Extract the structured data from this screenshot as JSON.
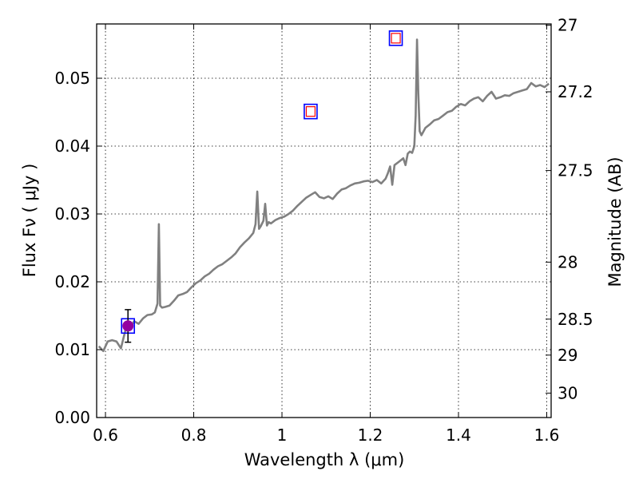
{
  "chart_data": {
    "type": "line",
    "xlabel": "Wavelength  λ (μm)",
    "ylabel": "Flux  Fν  ( μJy )",
    "y2label": "Magnitude (AB)",
    "xlim": [
      0.58,
      1.61
    ],
    "ylim": [
      0.0,
      0.058
    ],
    "grid": true,
    "x_ticks": [
      0.6,
      0.8,
      1.0,
      1.2,
      1.4,
      1.6
    ],
    "x_tick_labels": [
      "0.6",
      "0.8",
      "1",
      "1.2",
      "1.4",
      "1.6"
    ],
    "y_ticks": [
      0.0,
      0.01,
      0.02,
      0.03,
      0.04,
      0.05
    ],
    "y_tick_labels": [
      "0.00",
      "0.01",
      "0.02",
      "0.03",
      "0.04",
      "0.05"
    ],
    "y2_ticks": [
      {
        "label": "27",
        "flux": 0.0578
      },
      {
        "label": "27.2",
        "flux": 0.048
      },
      {
        "label": "27.5",
        "flux": 0.0364
      },
      {
        "label": "28",
        "flux": 0.0229
      },
      {
        "label": "28.5",
        "flux": 0.0145
      },
      {
        "label": "29",
        "flux": 0.0092
      },
      {
        "label": "30",
        "flux": 0.0036
      }
    ],
    "series": [
      {
        "type": "line",
        "color": "#808080",
        "x": [
          0.585,
          0.595,
          0.605,
          0.615,
          0.625,
          0.635,
          0.645,
          0.655,
          0.665,
          0.675,
          0.685,
          0.695,
          0.705,
          0.712,
          0.718,
          0.721,
          0.724,
          0.728,
          0.735,
          0.745,
          0.755,
          0.765,
          0.775,
          0.785,
          0.795,
          0.805,
          0.815,
          0.825,
          0.835,
          0.845,
          0.855,
          0.865,
          0.875,
          0.885,
          0.895,
          0.905,
          0.915,
          0.925,
          0.935,
          0.94,
          0.944,
          0.948,
          0.952,
          0.958,
          0.962,
          0.966,
          0.97,
          0.975,
          0.985,
          0.995,
          1.005,
          1.015,
          1.025,
          1.035,
          1.045,
          1.055,
          1.065,
          1.075,
          1.085,
          1.095,
          1.105,
          1.115,
          1.125,
          1.135,
          1.145,
          1.155,
          1.165,
          1.175,
          1.185,
          1.195,
          1.205,
          1.215,
          1.225,
          1.235,
          1.24,
          1.245,
          1.25,
          1.255,
          1.265,
          1.275,
          1.28,
          1.285,
          1.29,
          1.295,
          1.3,
          1.303,
          1.306,
          1.309,
          1.312,
          1.316,
          1.325,
          1.335,
          1.345,
          1.355,
          1.365,
          1.375,
          1.385,
          1.395,
          1.405,
          1.415,
          1.425,
          1.435,
          1.445,
          1.455,
          1.465,
          1.475,
          1.485,
          1.495,
          1.505,
          1.515,
          1.525,
          1.535,
          1.545,
          1.555,
          1.565,
          1.575,
          1.585,
          1.595,
          1.605
        ],
        "y": [
          0.0105,
          0.0098,
          0.0112,
          0.0114,
          0.0112,
          0.0102,
          0.0128,
          0.0131,
          0.0142,
          0.0138,
          0.0146,
          0.0151,
          0.0152,
          0.0155,
          0.0168,
          0.0285,
          0.0165,
          0.0162,
          0.0163,
          0.0165,
          0.0172,
          0.018,
          0.0182,
          0.0185,
          0.0192,
          0.0198,
          0.0202,
          0.0208,
          0.0212,
          0.0218,
          0.0223,
          0.0226,
          0.0231,
          0.0236,
          0.0242,
          0.0251,
          0.0258,
          0.0264,
          0.0272,
          0.0285,
          0.0333,
          0.0278,
          0.0282,
          0.029,
          0.0315,
          0.0283,
          0.0288,
          0.0286,
          0.0291,
          0.0294,
          0.0296,
          0.03,
          0.0305,
          0.0312,
          0.0318,
          0.0324,
          0.0328,
          0.0332,
          0.0325,
          0.0323,
          0.0326,
          0.0322,
          0.033,
          0.0336,
          0.0338,
          0.0342,
          0.0345,
          0.0346,
          0.0348,
          0.0349,
          0.0347,
          0.035,
          0.0345,
          0.0352,
          0.036,
          0.037,
          0.0343,
          0.0372,
          0.0377,
          0.0382,
          0.0372,
          0.0389,
          0.0392,
          0.039,
          0.04,
          0.0445,
          0.0557,
          0.0478,
          0.0422,
          0.0416,
          0.0427,
          0.0432,
          0.0438,
          0.044,
          0.0445,
          0.045,
          0.0452,
          0.0458,
          0.0462,
          0.046,
          0.0466,
          0.047,
          0.0472,
          0.0466,
          0.0474,
          0.048,
          0.047,
          0.0472,
          0.0475,
          0.0474,
          0.0478,
          0.048,
          0.0482,
          0.0484,
          0.0493,
          0.0488,
          0.049,
          0.0487,
          0.0492
        ]
      },
      {
        "type": "scatter",
        "marker": "square-open",
        "color": "#0000ff",
        "points": [
          {
            "x": 0.651,
            "y": 0.0135
          },
          {
            "x": 1.065,
            "y": 0.0451
          },
          {
            "x": 1.258,
            "y": 0.0559
          }
        ]
      },
      {
        "type": "scatter",
        "marker": "square-open-small",
        "color": "#ff0000",
        "points": [
          {
            "x": 1.065,
            "y": 0.0451
          },
          {
            "x": 1.258,
            "y": 0.0559
          }
        ]
      },
      {
        "type": "scatter",
        "marker": "circle-filled",
        "color": "#9400a0",
        "points": [
          {
            "x": 0.651,
            "y": 0.0135,
            "yerr": 0.0024
          }
        ]
      }
    ]
  }
}
